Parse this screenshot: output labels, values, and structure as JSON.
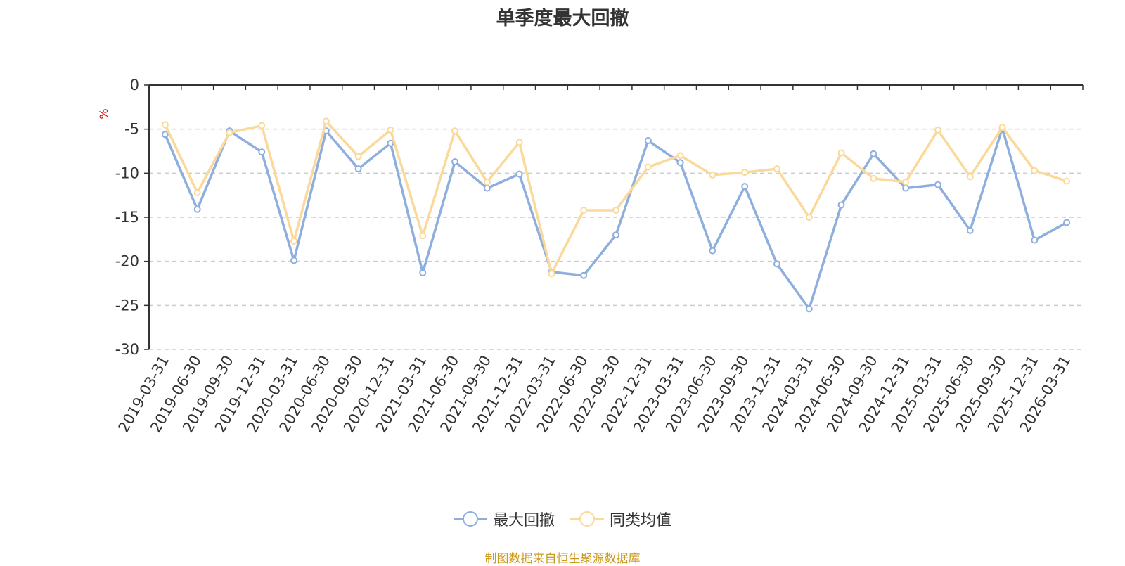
{
  "chart_data": {
    "type": "line",
    "title": "单季度最大回撤",
    "ylabel": "%",
    "ylim": [
      -30,
      0
    ],
    "yticks": [
      0,
      -5,
      -10,
      -15,
      -20,
      -25,
      -30
    ],
    "grid": true,
    "legend_position": "bottom",
    "categories": [
      "2019-03-31",
      "2019-06-30",
      "2019-09-30",
      "2019-12-31",
      "2020-03-31",
      "2020-06-30",
      "2020-09-30",
      "2020-12-31",
      "2021-03-31",
      "2021-06-30",
      "2021-09-30",
      "2021-12-31",
      "2022-03-31",
      "2022-06-30",
      "2022-09-30",
      "2022-12-31",
      "2023-03-31",
      "2023-06-30",
      "2023-09-30",
      "2023-12-31",
      "2024-03-31",
      "2024-06-30",
      "2024-09-30",
      "2024-12-31",
      "2025-03-31",
      "2025-06-30",
      "2025-09-30",
      "2025-12-31",
      "2026-03-31"
    ],
    "series": [
      {
        "name": "最大回撤",
        "color": "#8eaede",
        "values": [
          -5.6,
          -14.1,
          -5.2,
          -7.6,
          -19.9,
          -5.2,
          -9.5,
          -6.6,
          -21.3,
          -8.7,
          -11.7,
          -10.1,
          -21.2,
          -21.6,
          -17.0,
          -6.3,
          -8.8,
          -18.8,
          -11.5,
          -20.3,
          -25.4,
          -13.6,
          -7.8,
          -11.7,
          -11.3,
          -16.5,
          -4.9,
          -17.6,
          -15.6
        ]
      },
      {
        "name": "同类均值",
        "color": "#fad99a",
        "values": [
          -4.5,
          -12.2,
          -5.4,
          -4.6,
          -17.7,
          -4.1,
          -8.1,
          -5.1,
          -17.1,
          -5.2,
          -11.0,
          -6.5,
          -21.4,
          -14.2,
          -14.2,
          -9.3,
          -8.0,
          -10.2,
          -9.9,
          -9.5,
          -15.0,
          -7.7,
          -10.6,
          -11.0,
          -5.1,
          -10.4,
          -4.8,
          -9.7,
          -10.9
        ]
      }
    ],
    "source_note": "制图数据来自恒生聚源数据库"
  }
}
